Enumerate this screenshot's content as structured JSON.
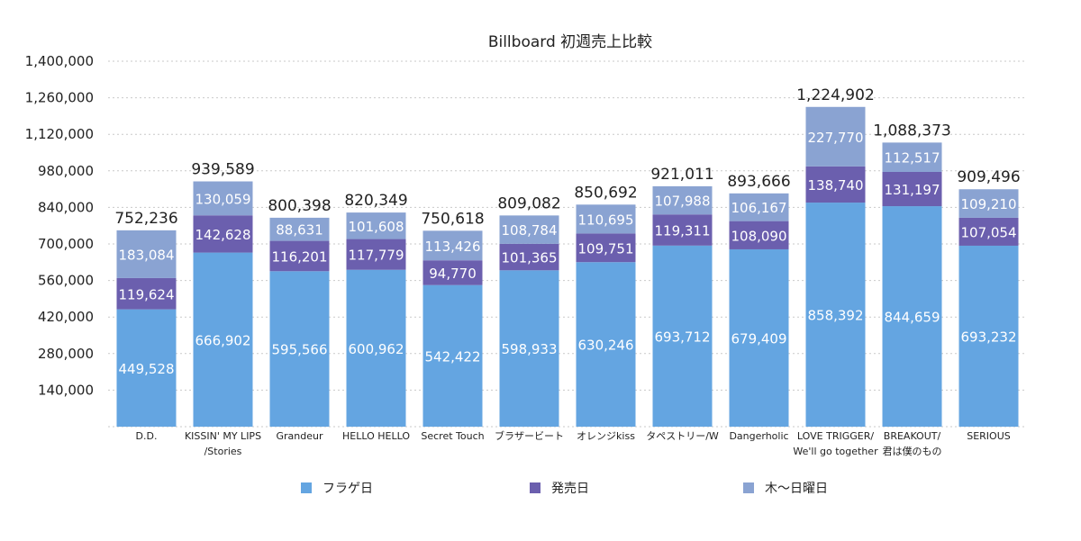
{
  "chart_data": {
    "type": "bar",
    "stacked": true,
    "title": "Billboard 初週売上比較",
    "xlabel": "",
    "ylabel": "",
    "ylim": [
      0,
      1400000
    ],
    "yticks": [
      "1,400,000",
      "1,260,000",
      "1,120,000",
      "980,000",
      "840,000",
      "700,000",
      "560,000",
      "420,000",
      "280,000",
      "140,000"
    ],
    "ytick_values": [
      1400000,
      1260000,
      1120000,
      980000,
      840000,
      700000,
      560000,
      420000,
      280000,
      140000
    ],
    "grid": true,
    "legend_position": "bottom",
    "categories": [
      [
        "D.D."
      ],
      [
        "KISSIN' MY LIPS",
        "/Stories"
      ],
      [
        "Grandeur"
      ],
      [
        "HELLO HELLO"
      ],
      [
        "Secret Touch"
      ],
      [
        "ブラザービート"
      ],
      [
        "オレンジkiss"
      ],
      [
        "タペストリー/W"
      ],
      [
        "Dangerholic"
      ],
      [
        "LOVE TRIGGER/",
        "We'll go together"
      ],
      [
        "BREAKOUT/",
        "君は僕のもの"
      ],
      [
        "SERIOUS"
      ]
    ],
    "series": [
      {
        "name": "フラゲ日",
        "color": "#64a5e1",
        "values": [
          449528,
          666902,
          595566,
          600962,
          542422,
          598933,
          630246,
          693712,
          679409,
          858392,
          844659,
          693232
        ],
        "labels": [
          "449,528",
          "666,902",
          "595,566",
          "600,962",
          "542,422",
          "598,933",
          "630,246",
          "693,712",
          "679,409",
          "858,392",
          "844,659",
          "693,232"
        ]
      },
      {
        "name": "発売日",
        "color": "#6b5fae",
        "values": [
          119624,
          142628,
          116201,
          117779,
          94770,
          101365,
          109751,
          119311,
          108090,
          138740,
          131197,
          107054
        ],
        "labels": [
          "119,624",
          "142,628",
          "116,201",
          "117,779",
          "94,770",
          "101,365",
          "109,751",
          "119,311",
          "108,090",
          "138,740",
          "131,197",
          "107,054"
        ]
      },
      {
        "name": "木〜日曜日",
        "color": "#8aa3d2",
        "values": [
          183084,
          130059,
          88631,
          101608,
          113426,
          108784,
          110695,
          107988,
          106167,
          227770,
          112517,
          109210
        ],
        "labels": [
          "183,084",
          "130,059",
          "88,631",
          "101,608",
          "113,426",
          "108,784",
          "110,695",
          "107,988",
          "106,167",
          "227,770",
          "112,517",
          "109,210"
        ]
      }
    ],
    "totals": [
      "752,236",
      "939,589",
      "800,398",
      "820,349",
      "750,618",
      "809,082",
      "850,692",
      "921,011",
      "893,666",
      "1,224,902",
      "1,088,373",
      "909,496"
    ],
    "total_values": [
      752236,
      939589,
      800398,
      820349,
      750618,
      809082,
      850692,
      921011,
      893666,
      1224902,
      1088373,
      909496
    ]
  }
}
